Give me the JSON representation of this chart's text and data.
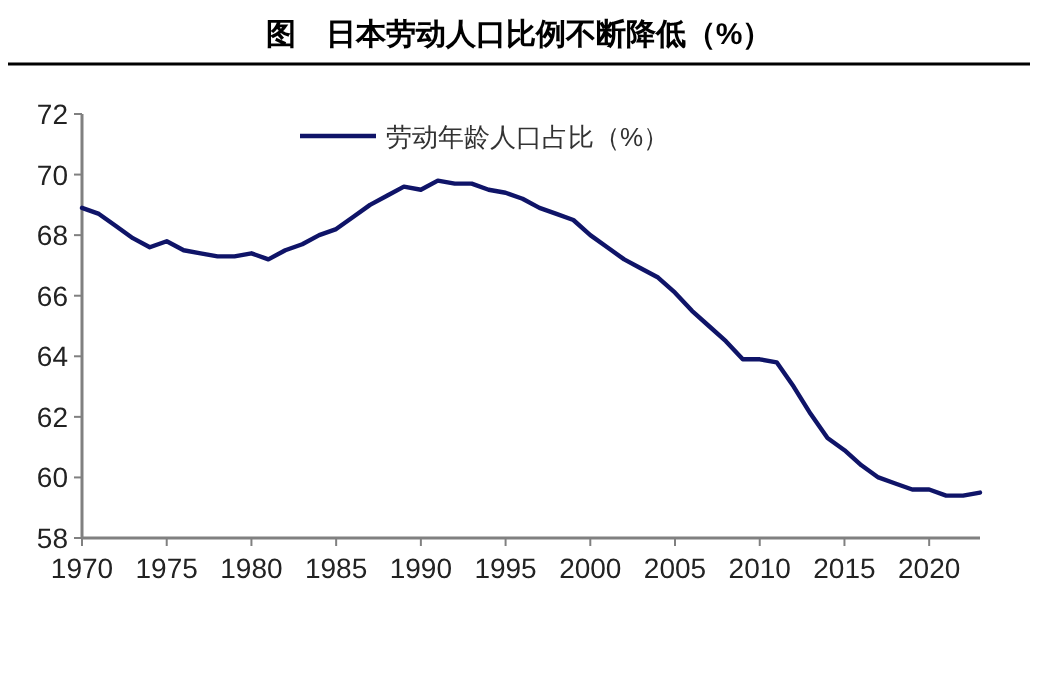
{
  "chart_data": {
    "type": "line",
    "title": "图　日本劳动人口比例不断降低（%）",
    "x": [
      1970,
      1971,
      1972,
      1973,
      1974,
      1975,
      1976,
      1977,
      1978,
      1979,
      1980,
      1981,
      1982,
      1983,
      1984,
      1985,
      1986,
      1987,
      1988,
      1989,
      1990,
      1991,
      1992,
      1993,
      1994,
      1995,
      1996,
      1997,
      1998,
      1999,
      2000,
      2001,
      2002,
      2003,
      2004,
      2005,
      2006,
      2007,
      2008,
      2009,
      2010,
      2011,
      2012,
      2013,
      2014,
      2015,
      2016,
      2017,
      2018,
      2019,
      2020,
      2021,
      2022,
      2023
    ],
    "series": [
      {
        "name": "劳动年龄人口占比（%）",
        "color": "#0f1468",
        "values": [
          68.9,
          68.7,
          68.3,
          67.9,
          67.6,
          67.8,
          67.5,
          67.4,
          67.3,
          67.3,
          67.4,
          67.2,
          67.5,
          67.7,
          68.0,
          68.2,
          68.6,
          69.0,
          69.3,
          69.6,
          69.5,
          69.8,
          69.7,
          69.7,
          69.5,
          69.4,
          69.2,
          68.9,
          68.7,
          68.5,
          68.0,
          67.6,
          67.2,
          66.9,
          66.6,
          66.1,
          65.5,
          65.0,
          64.5,
          63.9,
          63.9,
          63.8,
          63.0,
          62.1,
          61.3,
          60.9,
          60.4,
          60.0,
          59.8,
          59.6,
          59.6,
          59.4,
          59.4,
          59.5
        ]
      }
    ],
    "xlim": [
      1970,
      2023
    ],
    "xticks": [
      1970,
      1975,
      1980,
      1985,
      1990,
      1995,
      2000,
      2005,
      2010,
      2015,
      2020
    ],
    "ylim": [
      58,
      72
    ],
    "yticks": [
      58,
      60,
      62,
      64,
      66,
      68,
      70,
      72
    ],
    "legend": "top",
    "grid": false,
    "marker": "none",
    "line_style": "solid"
  }
}
